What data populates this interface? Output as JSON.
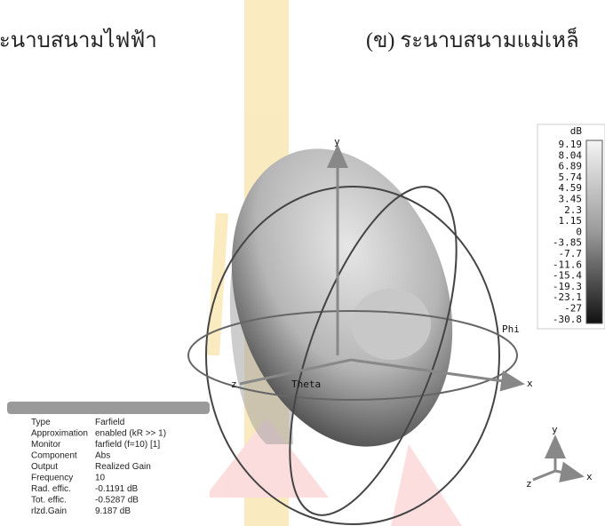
{
  "captions": {
    "left": "ระนาบสนามไฟฟ้า",
    "right": "(ข) ระนาบสนามแม่เหล็"
  },
  "colorbar": {
    "unit": "dB",
    "labels": [
      "9.19",
      "8.04",
      "6.89",
      "5.74",
      "4.59",
      "3.45",
      "2.3",
      "1.15",
      "0",
      "-3.85",
      "-7.7",
      "-11.6",
      "-15.4",
      "-19.3",
      "-23.1",
      "-27",
      "-30.8"
    ]
  },
  "axes": {
    "y": "y",
    "x": "x",
    "z": "z",
    "phi": "Phi",
    "theta": "Theta"
  },
  "triad": {
    "y": "y",
    "x": "x",
    "z": "z"
  },
  "info": {
    "rows": [
      [
        "Type",
        "Farfield"
      ],
      [
        "Approximation",
        "enabled (kR >> 1)"
      ],
      [
        "Monitor",
        "farfield (f=10) [1]"
      ],
      [
        "Component",
        "Abs"
      ],
      [
        "Output",
        "Realized Gain"
      ],
      [
        "Frequency",
        "10"
      ],
      [
        "Rad. effic.",
        "-0.1191 dB"
      ],
      [
        "Tot. effic.",
        "-0.5287 dB"
      ],
      [
        "rlzd.Gain",
        "9.187 dB"
      ]
    ]
  }
}
